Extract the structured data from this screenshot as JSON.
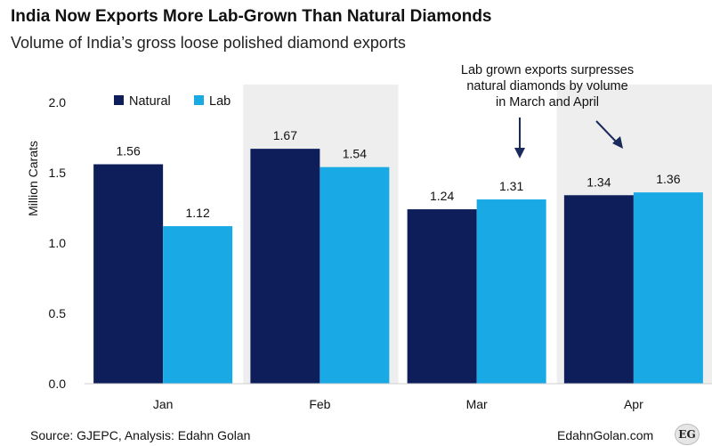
{
  "title": "India Now Exports More Lab-Grown Than Natural Diamonds",
  "subtitle": "Volume of India’s gross loose polished diamond exports",
  "annotation": [
    "Lab grown exports surpresses",
    "natural diamonds by volume",
    "in March and April"
  ],
  "source": "Source: GJEPC, Analysis: Edahn Golan",
  "brand": "EdahnGolan.com",
  "logo_text": "EG",
  "colors": {
    "natural": "#0e1e5b",
    "lab": "#19aae6",
    "panel": "#eeeeee"
  },
  "chart_data": {
    "type": "bar",
    "categories": [
      "Jan",
      "Feb",
      "Mar",
      "Apr"
    ],
    "series": [
      {
        "name": "Natural",
        "values": [
          1.56,
          1.67,
          1.24,
          1.34
        ]
      },
      {
        "name": "Lab",
        "values": [
          1.12,
          1.54,
          1.31,
          1.36
        ]
      }
    ],
    "data_labels": [
      [
        "1.56",
        "1.67",
        "1.24",
        "1.34"
      ],
      [
        "1.12",
        "1.54",
        "1.31",
        "1.36"
      ]
    ],
    "ylabel": "Million Carats",
    "ylim": [
      0,
      2.0
    ],
    "yticks": [
      "0.0",
      "0.5",
      "1.0",
      "1.5",
      "2.0"
    ],
    "legend_position": "top-left",
    "grid": false
  }
}
